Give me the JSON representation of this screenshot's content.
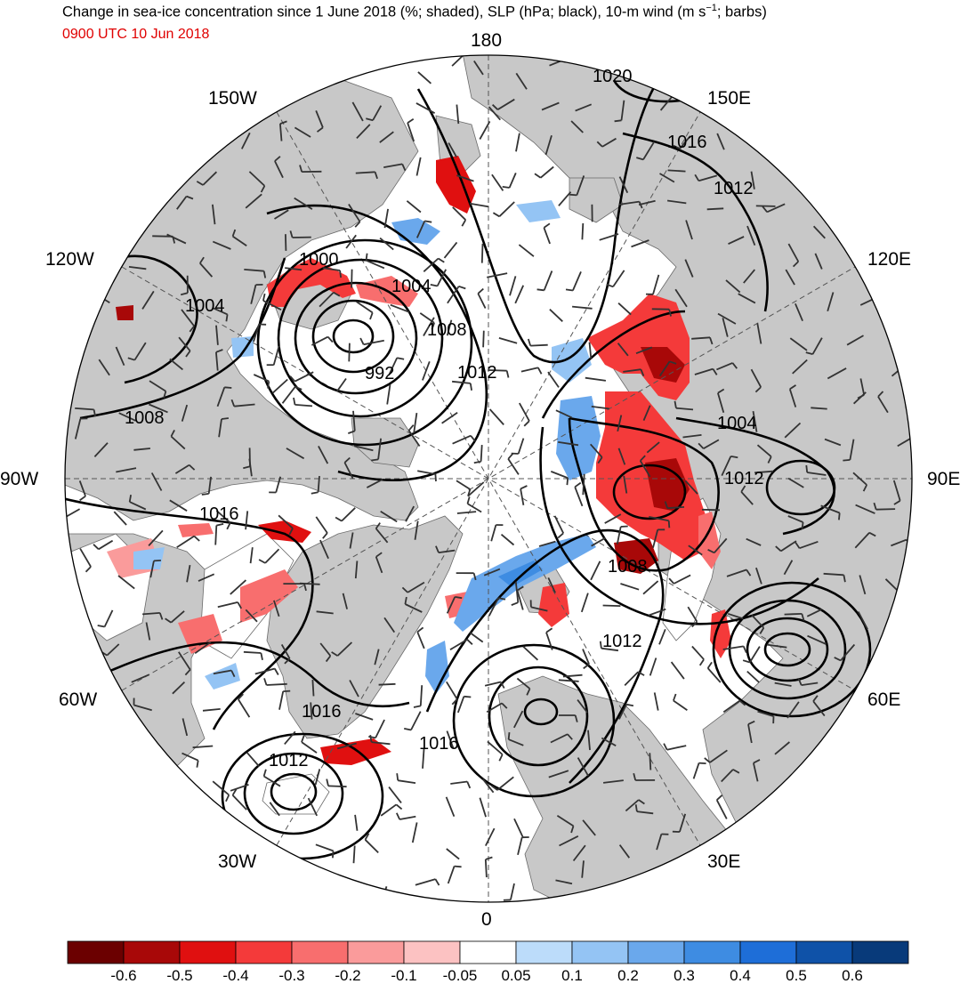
{
  "title_main": "Change in sea-ice concentration since 1 June 2018 (%; shaded), SLP (hPa; black), 10-m wind (m s",
  "title_sup": "−1",
  "title_tail": "; barbs)",
  "subtitle": "0900 UTC 10 Jun 2018",
  "longitude_labels": {
    "top": "180",
    "top_left": "150W",
    "top_right": "150E",
    "upper_left": "120W",
    "upper_right": "120E",
    "left": "90W",
    "right": "90E",
    "lower_left": "60W",
    "lower_right": "60E",
    "bottom_left": "30W",
    "bottom_right": "30E",
    "bottom": "0"
  },
  "isobar_labels": [
    "1020",
    "1016",
    "1012",
    "1000",
    "1004",
    "1008",
    "992",
    "1012",
    "1004",
    "1004",
    "1012",
    "1008",
    "1016",
    "1008",
    "1012",
    "1016",
    "1012",
    "1016"
  ],
  "colors": {
    "land": "#c8c8c8",
    "ocean": "#ffffff",
    "contour": "#000000",
    "barb": "#333333"
  },
  "colorbar": {
    "bins": [
      {
        "color": "#6b0000"
      },
      {
        "color": "#a80808"
      },
      {
        "color": "#e01010"
      },
      {
        "color": "#f43a3a"
      },
      {
        "color": "#f86e6e"
      },
      {
        "color": "#fa9b9b"
      },
      {
        "color": "#fcc2c2"
      },
      {
        "color": "#ffffff"
      },
      {
        "color": "#bcdcfa"
      },
      {
        "color": "#94c4f4"
      },
      {
        "color": "#6aa8ec"
      },
      {
        "color": "#3e8ce2"
      },
      {
        "color": "#1e6ed8"
      },
      {
        "color": "#0f52a8"
      },
      {
        "color": "#083a7a"
      }
    ],
    "tick_labels": [
      "-0.6",
      "-0.5",
      "-0.4",
      "-0.3",
      "-0.2",
      "-0.1",
      "-0.05",
      "0.05",
      "0.1",
      "0.2",
      "0.3",
      "0.4",
      "0.5",
      "0.6"
    ]
  }
}
